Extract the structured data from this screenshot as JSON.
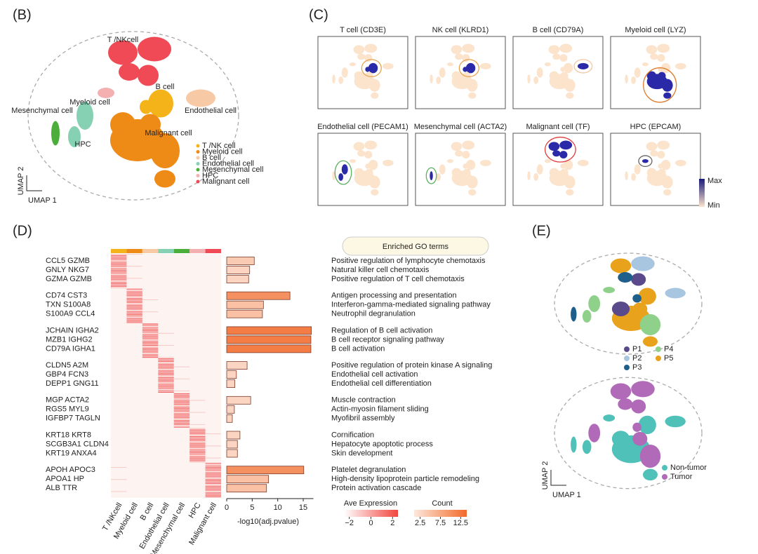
{
  "panel_labels": [
    "(B)",
    "(C)",
    "(D)",
    "(E)"
  ],
  "umap_b": {
    "x_label": "UMAP 1",
    "y_label": "UMAP 2",
    "cluster_labels": [
      "T /NKcell",
      "Myeloid cell",
      "B cell",
      "Endothelial cell",
      "Mesenchymal cell",
      "HPC",
      "Malignant cell"
    ],
    "legend": [
      {
        "name": "T /NK cell",
        "color": "#f5b31a"
      },
      {
        "name": "Myeloid cell",
        "color": "#ee8a16"
      },
      {
        "name": "B cell",
        "color": "#f7c9a5"
      },
      {
        "name": "Endothelial cell",
        "color": "#86d0b4"
      },
      {
        "name": "Mesenchymal cell",
        "color": "#4cae3a"
      },
      {
        "name": "HPC",
        "color": "#f4b0b0"
      },
      {
        "name": "Malignant cell",
        "color": "#ef4a55"
      }
    ]
  },
  "feature_plots": {
    "plots": [
      {
        "title": "T cell (CD3E)",
        "ring_color": "#e8a04a"
      },
      {
        "title": "NK cell (KLRD1)",
        "ring_color": "#e8a04a"
      },
      {
        "title": "B cell (CD79A)",
        "ring_color": "#f0c7a8"
      },
      {
        "title": "Myeloid cell (LYZ)",
        "ring_color": "#e07b2a"
      },
      {
        "title": "Endothelial cell (PECAM1)",
        "ring_color": "#5cae60"
      },
      {
        "title": "Mesenchymal cell (ACTA2)",
        "ring_color": "#5cae60"
      },
      {
        "title": "Malignant cell (TF)",
        "ring_color": "#e03a3a"
      },
      {
        "title": "HPC (EPCAM)",
        "ring_color": "#666666"
      }
    ],
    "colorbar": {
      "max": "Max",
      "min": "Min"
    }
  },
  "heatmap": {
    "columns": [
      "T /NKcell",
      "Myeloid cell",
      "B cell",
      "Endothelial cell",
      "Mesenchymal cell",
      "HPC",
      "Malignant cell"
    ],
    "genes": [
      "CCL5 GZMB",
      "GNLY NKG7",
      "GZMA GZMB",
      "CD74 CST3",
      "TXN S100A8",
      "S100A9 CCL4",
      "JCHAIN IGHA2",
      "MZB1 IGHG2",
      "CD79A IGHA1",
      "CLDN5 A2M",
      "GBP4 FCN3",
      "DEPP1 GNG11",
      "MGP ACTA2",
      "RGS5 MYL9",
      "IGFBP7 TAGLN",
      "KRT18 KRT8",
      "SCGB3A1 CLDN4",
      "KRT19 ANXA4",
      "APOH APOC3",
      "APOA1 HP",
      "ALB TTR"
    ],
    "legend": {
      "title": "Ave Expression",
      "lim": [
        -2.5,
        2.5
      ],
      "ticks": [
        {
          "value": -2,
          "label": "−2"
        },
        0,
        2
      ]
    }
  },
  "chart_data": {
    "type": "bar",
    "orientation": "horizontal",
    "header": "Enriched GO terms",
    "x_label": "-log10(adj.pvalue)",
    "xlim": [
      0,
      17
    ],
    "xticks": [
      0,
      5,
      10,
      15
    ],
    "categories": [
      "Positive regulation of lymphocyte chemotaxis",
      "Natural killer cell chemotaxis",
      "Positive regulation of T cell chemotaxis",
      "Antigen processing and presentation",
      "Interferon-gamma-mediated signaling pathway",
      "Neutrophil degranulation",
      "Regulation of B cell activation",
      "B cell receptor signaling pathway",
      "B cell activation",
      "Positive regulation of protein kinase A signaling",
      "Endothelial cell activation",
      "Endothelial cell differentiation",
      "Muscle contraction",
      "Actin-myosin filament sliding",
      "Myofibril assembly",
      "Cornification",
      "Hepatocyte apoptotic process",
      "Skin development",
      "Platelet degranulation",
      "High-density lipoprotein particle remodeling",
      "Protein activation cascade"
    ],
    "values": [
      5.4,
      4.5,
      4.3,
      12.4,
      7.2,
      7.0,
      16.6,
      16.5,
      16.5,
      4.0,
      1.9,
      1.6,
      4.7,
      1.5,
      1.1,
      2.6,
      2.1,
      2.1,
      15.1,
      8.2,
      7.8
    ],
    "count": [
      4,
      3,
      3,
      10,
      5,
      5,
      12,
      12,
      12,
      3,
      3,
      3,
      3,
      3,
      3,
      3,
      3,
      3,
      10,
      5,
      5
    ],
    "count_legend": {
      "title": "Count",
      "lim": [
        1,
        14
      ],
      "ticks": [
        2.5,
        7.5,
        12.5
      ]
    }
  },
  "umap_e": {
    "x_label": "UMAP 1",
    "y_label": "UMAP 2",
    "patients": [
      {
        "name": "P1",
        "color": "#5b4a8b"
      },
      {
        "name": "P2",
        "color": "#a8c6e0"
      },
      {
        "name": "P3",
        "color": "#1f5f8b"
      },
      {
        "name": "P4",
        "color": "#8fd18b"
      },
      {
        "name": "P5",
        "color": "#e8a21c"
      }
    ],
    "tissue": [
      {
        "name": "Non-tumor",
        "color": "#4fc1b8"
      },
      {
        "name": "Tumor",
        "color": "#b06ab8"
      }
    ]
  }
}
